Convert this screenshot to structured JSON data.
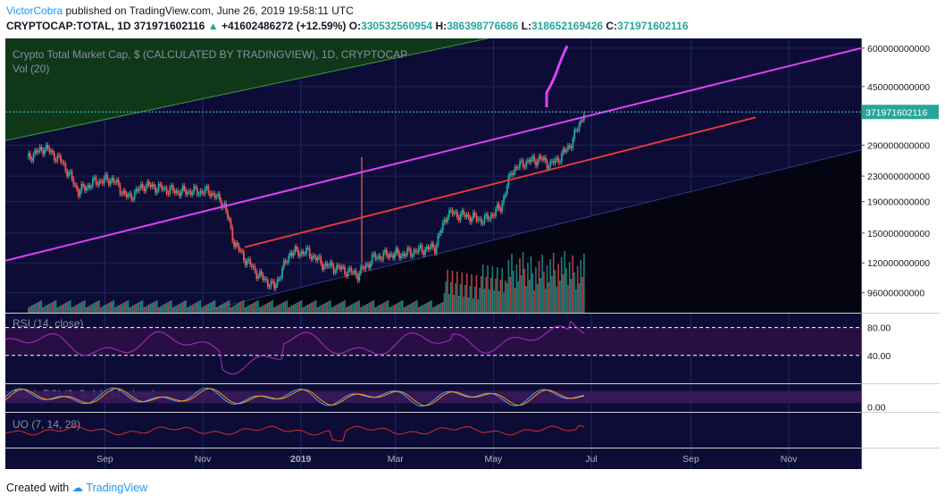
{
  "header": {
    "author": "VictorCobra",
    "published": "published on TradingView.com, June 26, 2019 19:58:11 UTC",
    "symbol": "CRYPTOCAP:TOTAL, 1D",
    "last": "371971602116",
    "change": "+41602486272 (+12.59%)",
    "o_label": "O:",
    "o": "330532560954",
    "h_label": "H:",
    "h": "386398776686",
    "l_label": "L:",
    "l": "318652169426",
    "c_label": "C:",
    "c": "371971602116"
  },
  "panes": {
    "main_title": "Crypto Total Market Cap, $ (CALCULATED BY TRADINGVIEW), 1D, CRYPTOCAP",
    "vol_label": "Vol (20)",
    "rsi_label": "RSI (14, close)",
    "stoch_label": "Stoch RSI (3, 3, 14, 14, close)",
    "uo_label": "UO (7, 14, 28)",
    "price_tag": "371971602116"
  },
  "footer": {
    "created_with": "Created with",
    "brand": "TradingView"
  },
  "colors": {
    "pane_bg": "#0c0c36",
    "up": "#26a69a",
    "down": "#ef5350",
    "channel_magenta": "#e040fb",
    "trend_red": "#e53935",
    "top_zone": "#0f3d16",
    "rsi": "#9c27b0",
    "uo": "#d32f2f",
    "axis_text": "#1a1a1a"
  },
  "chart_data": {
    "type": "line",
    "title": "Crypto Total Market Cap, $ (CALCULATED BY TRADINGVIEW), 1D, CRYPTOCAP",
    "price_axis_labels": [
      "600000000000",
      "450000000000",
      "371971602116",
      "290000000000",
      "230000000000",
      "190000000000",
      "150000000000",
      "120000000000",
      "96000000000"
    ],
    "price_axis_values": [
      600000000000,
      450000000000,
      290000000000,
      230000000000,
      190000000000,
      150000000000,
      120000000000,
      96000000000
    ],
    "y_scale": "log",
    "time_labels": [
      "Sep",
      "Nov",
      "2019",
      "Mar",
      "May",
      "Jul",
      "Sep",
      "Nov"
    ],
    "series": [
      {
        "name": "TOTAL",
        "x": [
          "2018-07-15",
          "2018-07-25",
          "2018-08-05",
          "2018-08-15",
          "2018-08-25",
          "2018-09-05",
          "2018-09-15",
          "2018-09-25",
          "2018-10-05",
          "2018-10-15",
          "2018-10-25",
          "2018-11-05",
          "2018-11-14",
          "2018-11-20",
          "2018-11-26",
          "2018-12-05",
          "2018-12-15",
          "2018-12-25",
          "2019-01-05",
          "2019-01-15",
          "2019-01-25",
          "2019-02-05",
          "2019-02-15",
          "2019-02-25",
          "2019-03-05",
          "2019-03-15",
          "2019-03-25",
          "2019-04-02",
          "2019-04-15",
          "2019-04-25",
          "2019-05-05",
          "2019-05-12",
          "2019-05-20",
          "2019-05-30",
          "2019-06-05",
          "2019-06-12",
          "2019-06-18",
          "2019-06-22",
          "2019-06-26"
        ],
        "values": [
          265000000000,
          285000000000,
          255000000000,
          205000000000,
          220000000000,
          225000000000,
          195000000000,
          215000000000,
          210000000000,
          205000000000,
          205000000000,
          205000000000,
          185000000000,
          140000000000,
          125000000000,
          110000000000,
          100000000000,
          130000000000,
          130000000000,
          118000000000,
          115000000000,
          110000000000,
          125000000000,
          128000000000,
          128000000000,
          132000000000,
          135000000000,
          175000000000,
          170000000000,
          165000000000,
          182000000000,
          240000000000,
          255000000000,
          262000000000,
          250000000000,
          268000000000,
          295000000000,
          330000000000,
          372000000000
        ]
      }
    ],
    "rsi_levels": [
      80,
      40
    ],
    "stoch_levels": [
      0
    ],
    "rsi_axis_labels": [
      "80.00",
      "40.00"
    ],
    "stoch_axis_labels": [
      "0.00"
    ],
    "grid": true
  }
}
